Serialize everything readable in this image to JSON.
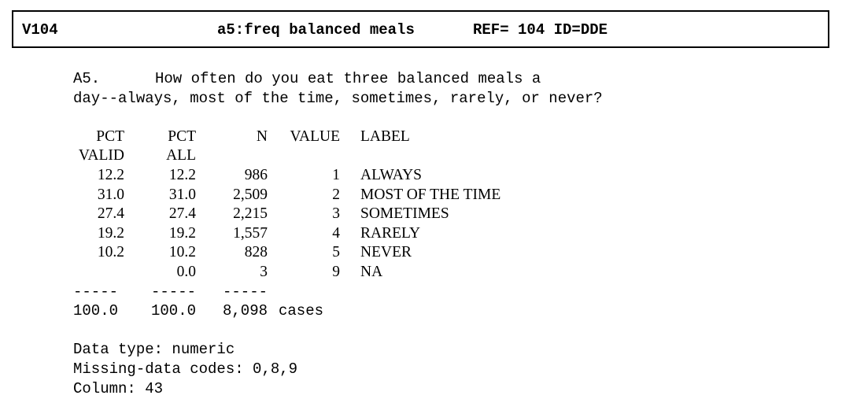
{
  "header": {
    "var_id": "V104",
    "title": "a5:freq balanced meals",
    "ref": "REF= 104 ID=DDE"
  },
  "question": {
    "number": "A5.",
    "line1": "How often do you eat three balanced meals a",
    "line2": "day--always, most of the time, sometimes, rarely, or never?"
  },
  "table": {
    "headers_row1": [
      "PCT",
      "PCT",
      "N",
      "VALUE",
      "LABEL"
    ],
    "headers_row2": [
      "VALID",
      "ALL",
      "",
      "",
      ""
    ],
    "rows": [
      {
        "pct_valid": "12.2",
        "pct_all": "12.2",
        "n": "986",
        "value": "1",
        "label": "ALWAYS"
      },
      {
        "pct_valid": "31.0",
        "pct_all": "31.0",
        "n": "2,509",
        "value": "2",
        "label": "MOST OF THE TIME"
      },
      {
        "pct_valid": "27.4",
        "pct_all": "27.4",
        "n": "2,215",
        "value": "3",
        "label": "SOMETIMES"
      },
      {
        "pct_valid": "19.2",
        "pct_all": "19.2",
        "n": "1,557",
        "value": "4",
        "label": "RARELY"
      },
      {
        "pct_valid": "10.2",
        "pct_all": "10.2",
        "n": "828",
        "value": "5",
        "label": "NEVER"
      },
      {
        "pct_valid": "",
        "pct_all": "0.0",
        "n": "3",
        "value": "9",
        "label": "NA"
      }
    ],
    "separator": "-----",
    "total": {
      "pct_valid": "100.0",
      "pct_all": "100.0",
      "n": "8,098",
      "suffix": "cases"
    }
  },
  "meta": {
    "data_type": "Data type: numeric",
    "missing_codes": "Missing-data codes: 0,8,9",
    "column": "Column: 43"
  }
}
